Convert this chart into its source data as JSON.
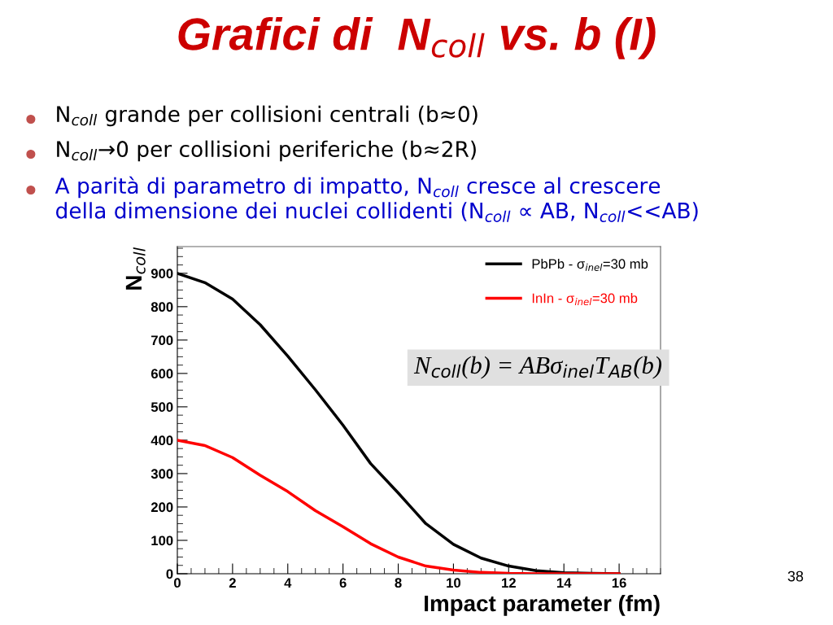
{
  "chart_data": {
    "type": "line",
    "title": "Grafici di  N$_{coll}$ vs. b (I)",
    "xlabel": "Impact parameter (fm)",
    "ylabel": "N$_{coll}$",
    "annotations": [
      "N$_{coll}$ grande per collisioni centrali (b≈0)",
      "N$_{coll}$→0 per collisioni periferiche (b≈2R)",
      "A parità di parametro di impatto, N$_{coll}$ cresce al crescere\ndella dimensione dei nuclei collidenti (N$_{coll}$ ∝ AB, N$_{coll}$<<AB)",
      "N$_{coll}$(b) = ABσ$_{inel}$T$_{AB}$(b)",
      "38"
    ],
    "x": [
      0,
      1,
      2,
      3,
      4,
      5,
      6,
      7,
      8,
      9,
      10,
      11,
      12,
      13,
      14,
      15,
      16
    ],
    "series": [
      {
        "name": "PbPb - σ$_{inel}$=30 mb",
        "color": "#000000",
        "values": [
          900,
          872,
          823,
          746,
          652,
          551,
          445,
          330,
          242,
          150,
          88,
          47,
          23,
          9,
          3,
          1,
          0
        ]
      },
      {
        "name": "InIn - σ$_{inel}$=30 mb",
        "color": "#ff0000",
        "values": [
          400,
          384,
          348,
          295,
          246,
          189,
          141,
          90,
          50,
          23,
          11,
          4,
          1,
          0,
          0,
          0,
          0
        ]
      }
    ],
    "xlim": [
      0,
      17.5
    ],
    "ylim": [
      0,
      980
    ],
    "xticks": [
      0,
      2,
      4,
      6,
      8,
      10,
      12,
      14,
      16
    ],
    "yticks": [
      0,
      100,
      200,
      300,
      400,
      500,
      600,
      700,
      800,
      900
    ],
    "legend": "top right",
    "grid": false,
    "marker": "none",
    "line_style": "solid"
  }
}
